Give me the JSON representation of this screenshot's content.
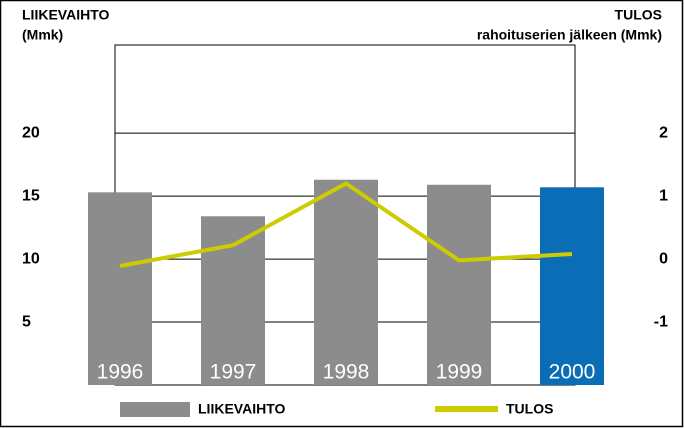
{
  "chart_data": {
    "type": "bar_line",
    "y_label": [
      "LIIKEVAIHTO",
      "(Mmk)"
    ],
    "y2_label": [
      "TULOS",
      "rahoituserien jälkeen (Mmk)"
    ],
    "categories": [
      "1996",
      "1997",
      "1998",
      "1999",
      "2000"
    ],
    "series": [
      {
        "name": "LIIKEVAIHTO",
        "type": "bar",
        "color": "#8c8c8c",
        "colors": [
          "#8c8c8c",
          "#8c8c8c",
          "#8c8c8c",
          "#8c8c8c",
          "#0a6db5"
        ],
        "values": [
          15.3,
          13.4,
          16.3,
          15.9,
          15.7
        ]
      },
      {
        "name": "TULOS",
        "type": "line",
        "axis": "y2",
        "color": "#cccc00",
        "values": [
          -0.11,
          0.22,
          1.2,
          -0.02,
          0.08
        ]
      }
    ],
    "ylim": [
      0,
      27
    ],
    "yticks": [
      5,
      10,
      15,
      20
    ],
    "y2lim": [
      -2,
      3.4
    ],
    "y2ticks": [
      -1,
      0,
      1,
      2
    ],
    "grid": true
  }
}
